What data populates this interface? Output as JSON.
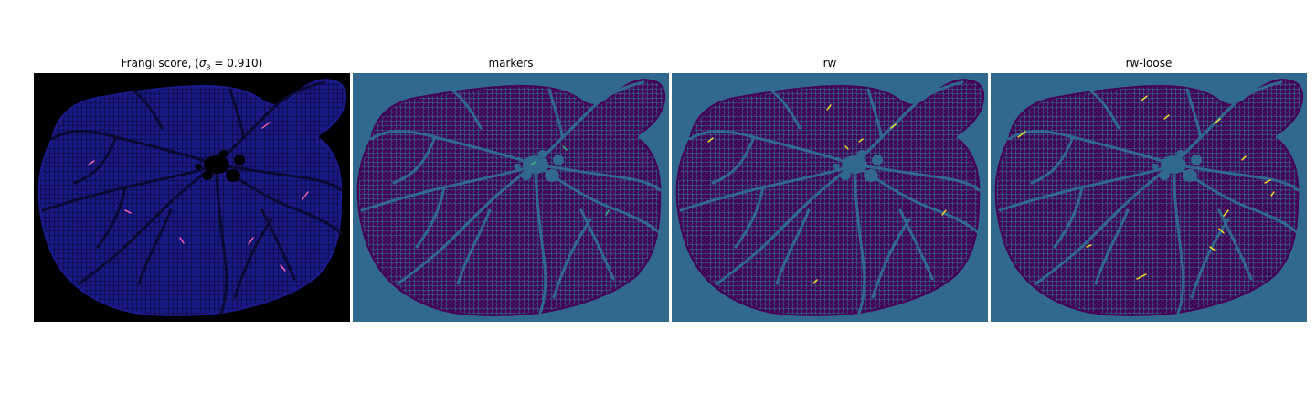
{
  "figure": {
    "panels": [
      {
        "id": "frangi",
        "title_prefix": "Frangi score, (",
        "title_sigma": "σ",
        "title_sub": "3",
        "title_suffix": " = 0.910)",
        "colors": {
          "background": "#000000",
          "tissue": "#1a1a8c",
          "vessel": "#0a0a35",
          "highlight": "#ff66aa"
        }
      },
      {
        "id": "markers",
        "title": "markers",
        "colors": {
          "background": "#31688e",
          "tissue": "#440154",
          "vessel": "#31688e",
          "highlight": "#35b779"
        }
      },
      {
        "id": "rw",
        "title": "rw",
        "colors": {
          "background": "#31688e",
          "tissue": "#440154",
          "vessel": "#31688e",
          "highlight": "#fde725"
        }
      },
      {
        "id": "rw-loose",
        "title": "rw-loose",
        "colors": {
          "background": "#31688e",
          "tissue": "#440154",
          "vessel": "#31688e",
          "highlight": "#fde725"
        }
      }
    ]
  }
}
